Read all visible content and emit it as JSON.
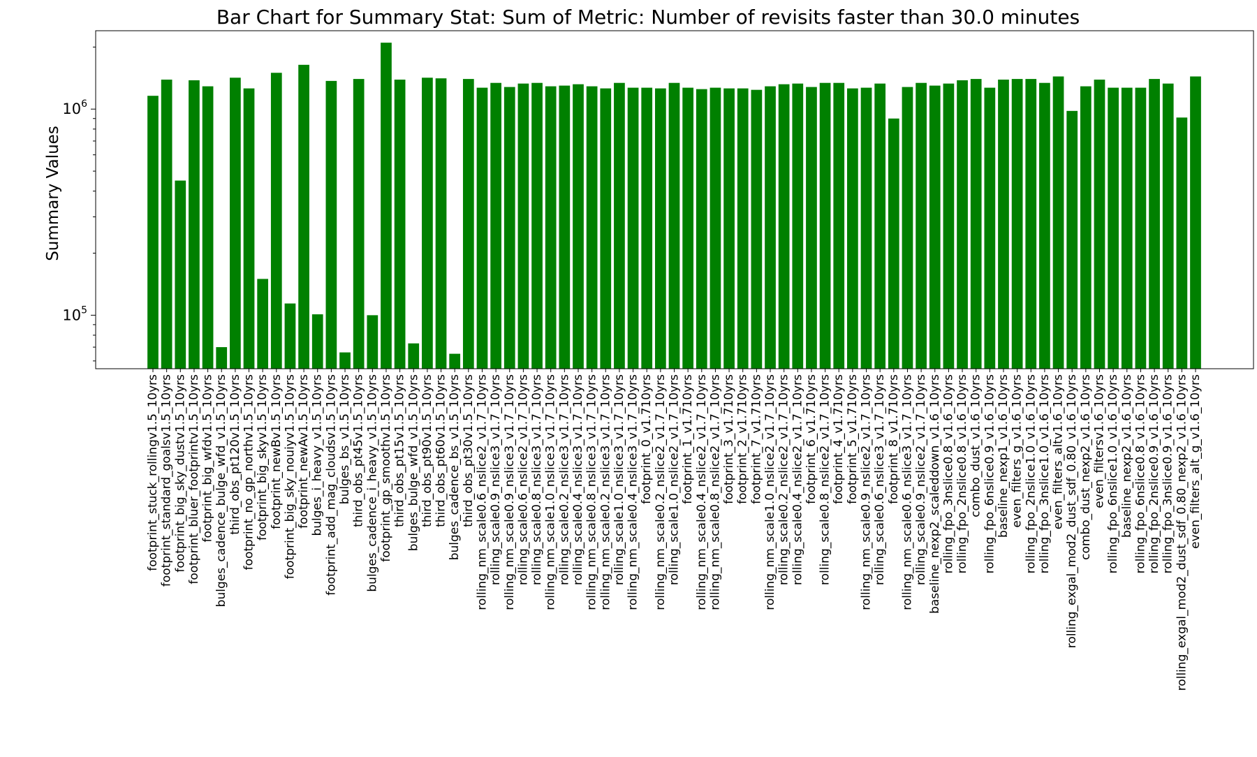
{
  "chart_data": {
    "type": "bar",
    "title": "Bar Chart for Summary Stat: Sum of Metric: Number of revisits faster than 30.0 minutes",
    "xlabel": "",
    "ylabel": "Summary Values",
    "yscale": "log",
    "ylim": [
      55000,
      2400000
    ],
    "yticks": [
      {
        "value": 100000,
        "base": "10",
        "exp": "5"
      },
      {
        "value": 1000000,
        "base": "10",
        "exp": "6"
      }
    ],
    "grid": false,
    "legend": "none",
    "bar_color": "#008000",
    "categories": [
      "footprint_stuck_rollingv1.5_10yrs",
      "footprint_standard_goalsv1.5_10yrs",
      "footprint_big_sky_dustv1.5_10yrs",
      "footprint_bluer_footprintv1.5_10yrs",
      "footprint_big_wfdv1.5_10yrs",
      "bulges_cadence_bulge_wfd_v1.5_10yrs",
      "third_obs_pt120v1.5_10yrs",
      "footprint_no_gp_northv1.5_10yrs",
      "footprint_big_skyv1.5_10yrs",
      "footprint_newBv1.5_10yrs",
      "footprint_big_sky_nouiyv1.5_10yrs",
      "footprint_newAv1.5_10yrs",
      "bulges_i_heavy_v1.5_10yrs",
      "footprint_add_mag_cloudsv1.5_10yrs",
      "bulges_bs_v1.5_10yrs",
      "third_obs_pt45v1.5_10yrs",
      "bulges_cadence_i_heavy_v1.5_10yrs",
      "footprint_gp_smoothv1.5_10yrs",
      "third_obs_pt15v1.5_10yrs",
      "bulges_bulge_wfd_v1.5_10yrs",
      "third_obs_pt90v1.5_10yrs",
      "third_obs_pt60v1.5_10yrs",
      "bulges_cadence_bs_v1.5_10yrs",
      "third_obs_pt30v1.5_10yrs",
      "rolling_nm_scale0.6_nslice2_v1.7_10yrs",
      "rolling_scale0.9_nslice3_v1.7_10yrs",
      "rolling_nm_scale0.9_nslice3_v1.7_10yrs",
      "rolling_scale0.6_nslice2_v1.7_10yrs",
      "rolling_scale0.8_nslice3_v1.7_10yrs",
      "rolling_nm_scale1.0_nslice3_v1.7_10yrs",
      "rolling_scale0.2_nslice3_v1.7_10yrs",
      "rolling_scale0.4_nslice3_v1.7_10yrs",
      "rolling_nm_scale0.8_nslice3_v1.7_10yrs",
      "rolling_nm_scale0.2_nslice3_v1.7_10yrs",
      "rolling_scale1.0_nslice3_v1.7_10yrs",
      "rolling_nm_scale0.4_nslice3_v1.7_10yrs",
      "footprint_0_v1.710yrs",
      "rolling_nm_scale0.2_nslice2_v1.7_10yrs",
      "rolling_scale1.0_nslice2_v1.7_10yrs",
      "footprint_1_v1.710yrs",
      "rolling_nm_scale0.4_nslice2_v1.7_10yrs",
      "rolling_nm_scale0.8_nslice2_v1.7_10yrs",
      "footprint_3_v1.710yrs",
      "footprint_2_v1.710yrs",
      "footprint_7_v1.710yrs",
      "rolling_nm_scale1.0_nslice2_v1.7_10yrs",
      "rolling_scale0.2_nslice2_v1.7_10yrs",
      "rolling_scale0.4_nslice2_v1.7_10yrs",
      "footprint_6_v1.710yrs",
      "rolling_scale0.8_nslice2_v1.7_10yrs",
      "footprint_4_v1.710yrs",
      "footprint_5_v1.710yrs",
      "rolling_nm_scale0.9_nslice2_v1.7_10yrs",
      "rolling_scale0.6_nslice3_v1.7_10yrs",
      "footprint_8_v1.710yrs",
      "rolling_nm_scale0.6_nslice3_v1.7_10yrs",
      "rolling_scale0.9_nslice2_v1.7_10yrs",
      "baseline_nexp2_scaleddown_v1.6_10yrs",
      "rolling_fpo_3nslice0.8_v1.6_10yrs",
      "rolling_fpo_2nslice0.8_v1.6_10yrs",
      "combo_dust_v1.6_10yrs",
      "rolling_fpo_6nslice0.9_v1.6_10yrs",
      "baseline_nexp1_v1.6_10yrs",
      "even_filters_g_v1.6_10yrs",
      "rolling_fpo_2nslice1.0_v1.6_10yrs",
      "rolling_fpo_3nslice1.0_v1.6_10yrs",
      "even_filters_altv1.6_10yrs",
      "rolling_exgal_mod2_dust_sdf_0.80_v1.6_10yrs",
      "combo_dust_nexp2_v1.6_10yrs",
      "even_filtersv1.6_10yrs",
      "rolling_fpo_6nslice1.0_v1.6_10yrs",
      "baseline_nexp2_v1.6_10yrs",
      "rolling_fpo_6nslice0.8_v1.6_10yrs",
      "rolling_fpo_2nslice0.9_v1.6_10yrs",
      "rolling_fpo_3nslice0.9_v1.6_10yrs",
      "rolling_exgal_mod2_dust_sdf_0.80_nexp2_v1.6_10yrs",
      "even_filters_alt_g_v1.6_10yrs"
    ],
    "values": [
      1160000,
      1390000,
      450000,
      1380000,
      1290000,
      70000,
      1420000,
      1260000,
      150000,
      1500000,
      114000,
      1640000,
      101000,
      1370000,
      66000,
      1400000,
      100000,
      2100000,
      1390000,
      73000,
      1420000,
      1410000,
      65000,
      1400000,
      1270000,
      1340000,
      1280000,
      1330000,
      1340000,
      1290000,
      1300000,
      1320000,
      1290000,
      1260000,
      1340000,
      1270000,
      1270000,
      1260000,
      1340000,
      1270000,
      1250000,
      1270000,
      1260000,
      1260000,
      1240000,
      1290000,
      1320000,
      1330000,
      1280000,
      1340000,
      1340000,
      1260000,
      1270000,
      1330000,
      900000,
      1280000,
      1340000,
      1300000,
      1330000,
      1380000,
      1400000,
      1270000,
      1390000,
      1400000,
      1400000,
      1340000,
      1440000,
      980000,
      1290000,
      1390000,
      1270000,
      1270000,
      1270000,
      1400000,
      1330000,
      910000,
      1440000
    ]
  }
}
